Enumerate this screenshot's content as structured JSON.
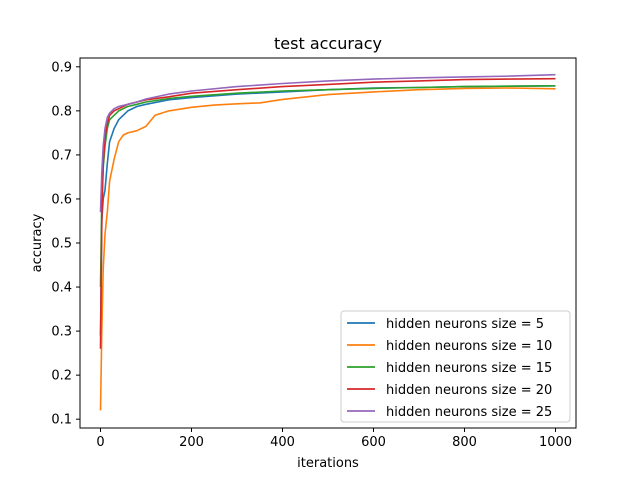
{
  "chart_data": {
    "type": "line",
    "title": "test accuracy",
    "xlabel": "iterations",
    "ylabel": "accuracy",
    "xlim": [
      -45,
      1045
    ],
    "ylim": [
      0.08,
      0.92
    ],
    "xticks": [
      0,
      200,
      400,
      600,
      800,
      1000
    ],
    "xtick_labels": [
      "0",
      "200",
      "400",
      "600",
      "800",
      "1000"
    ],
    "yticks": [
      0.1,
      0.2,
      0.3,
      0.4,
      0.5,
      0.6,
      0.7,
      0.8,
      0.9
    ],
    "ytick_labels": [
      "0.1",
      "0.2",
      "0.3",
      "0.4",
      "0.5",
      "0.6",
      "0.7",
      "0.8",
      "0.9"
    ],
    "grid": false,
    "legend_position": "lower-right",
    "series": [
      {
        "name": "hidden neurons size = 5",
        "color": "#1f77b4",
        "x": [
          0,
          3,
          6,
          10,
          15,
          20,
          30,
          40,
          50,
          60,
          80,
          100,
          150,
          200,
          300,
          400,
          500,
          600,
          700,
          800,
          900,
          1000
        ],
        "y": [
          0.29,
          0.55,
          0.6,
          0.62,
          0.68,
          0.73,
          0.76,
          0.78,
          0.79,
          0.8,
          0.81,
          0.815,
          0.825,
          0.83,
          0.838,
          0.843,
          0.848,
          0.852,
          0.853,
          0.855,
          0.856,
          0.857
        ]
      },
      {
        "name": "hidden neurons size = 10",
        "color": "#ff7f0e",
        "x": [
          0,
          3,
          6,
          10,
          15,
          20,
          30,
          40,
          50,
          60,
          80,
          100,
          120,
          150,
          200,
          250,
          300,
          350,
          400,
          500,
          600,
          700,
          800,
          900,
          1000
        ],
        "y": [
          0.12,
          0.3,
          0.44,
          0.52,
          0.57,
          0.64,
          0.69,
          0.73,
          0.745,
          0.75,
          0.755,
          0.765,
          0.79,
          0.8,
          0.808,
          0.813,
          0.816,
          0.818,
          0.826,
          0.837,
          0.843,
          0.848,
          0.851,
          0.852,
          0.85
        ]
      },
      {
        "name": "hidden neurons size = 15",
        "color": "#2ca02c",
        "x": [
          0,
          3,
          6,
          10,
          15,
          20,
          30,
          40,
          60,
          80,
          100,
          150,
          200,
          300,
          400,
          500,
          600,
          700,
          800,
          900,
          1000
        ],
        "y": [
          0.4,
          0.6,
          0.67,
          0.72,
          0.76,
          0.78,
          0.79,
          0.8,
          0.81,
          0.815,
          0.82,
          0.828,
          0.833,
          0.84,
          0.845,
          0.848,
          0.851,
          0.853,
          0.855,
          0.856,
          0.857
        ]
      },
      {
        "name": "hidden neurons size = 20",
        "color": "#d62728",
        "x": [
          0,
          3,
          6,
          10,
          15,
          20,
          30,
          40,
          60,
          80,
          100,
          150,
          200,
          300,
          400,
          500,
          600,
          700,
          800,
          900,
          1000
        ],
        "y": [
          0.26,
          0.55,
          0.68,
          0.74,
          0.77,
          0.79,
          0.8,
          0.805,
          0.815,
          0.82,
          0.825,
          0.832,
          0.84,
          0.848,
          0.855,
          0.86,
          0.865,
          0.868,
          0.871,
          0.872,
          0.873
        ]
      },
      {
        "name": "hidden neurons size = 25",
        "color": "#9467bd",
        "x": [
          0,
          3,
          6,
          10,
          15,
          20,
          30,
          40,
          60,
          80,
          100,
          150,
          200,
          300,
          400,
          500,
          600,
          700,
          800,
          900,
          1000
        ],
        "y": [
          0.57,
          0.66,
          0.72,
          0.76,
          0.785,
          0.795,
          0.805,
          0.81,
          0.815,
          0.82,
          0.827,
          0.838,
          0.845,
          0.855,
          0.862,
          0.868,
          0.872,
          0.875,
          0.877,
          0.879,
          0.882
        ]
      }
    ]
  }
}
